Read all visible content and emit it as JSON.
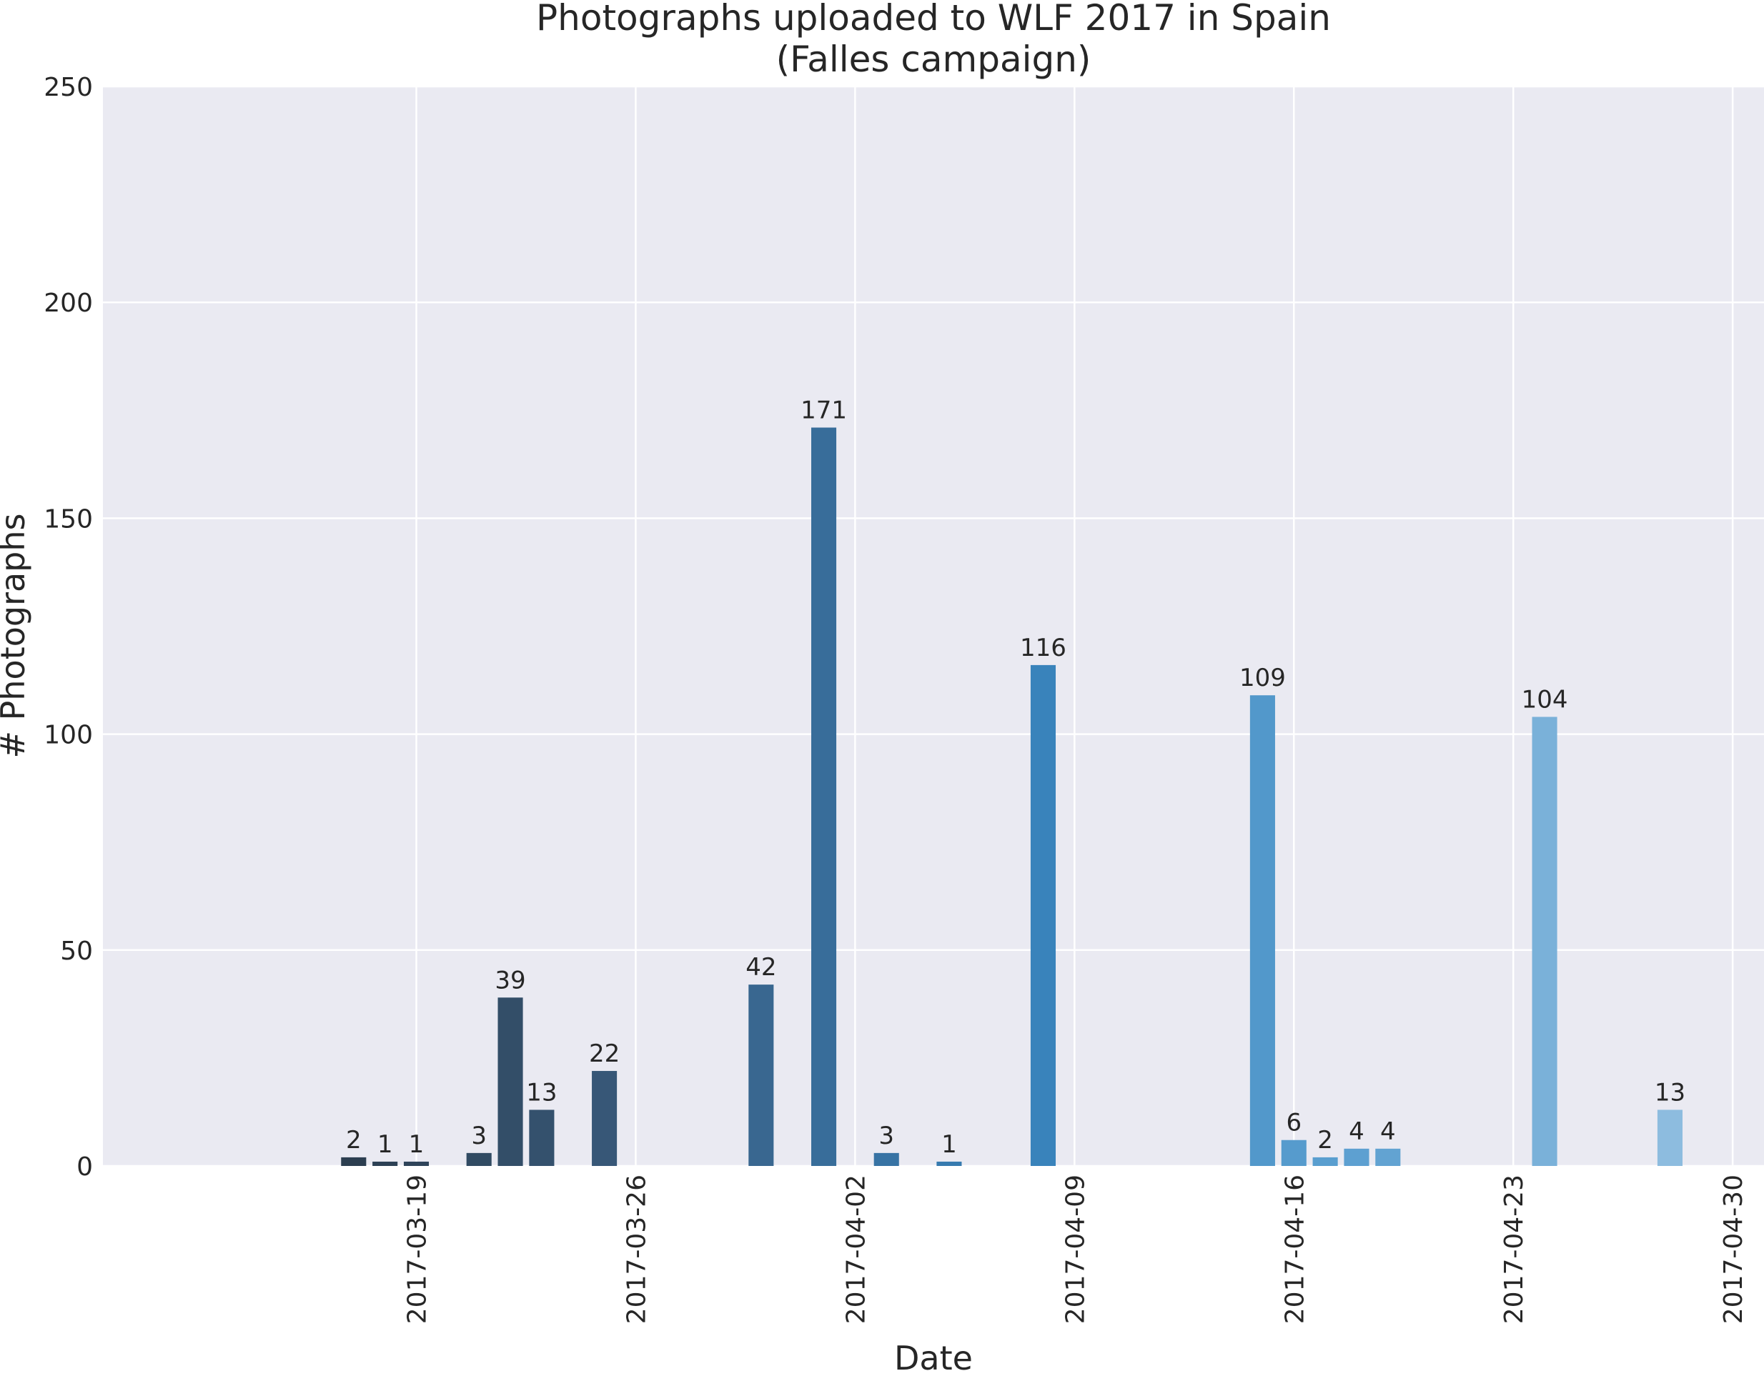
{
  "chart_data": {
    "type": "bar",
    "title": "Photographs uploaded to WLF 2017 in Spain",
    "subtitle": "(Falles campaign)",
    "xlabel": "Date",
    "ylabel": "# Photographs",
    "x_range": [
      "2017-03-09",
      "2017-05-01"
    ],
    "ylim": [
      0,
      250
    ],
    "y_ticks": [
      0,
      50,
      100,
      150,
      200,
      250
    ],
    "x_ticks": [
      "2017-03-19",
      "2017-03-26",
      "2017-04-02",
      "2017-04-09",
      "2017-04-16",
      "2017-04-23",
      "2017-04-30"
    ],
    "grid": true,
    "background": "#eaeaf2",
    "grid_color": "#ffffff",
    "palette": [
      "#2c3e50",
      "#3a5f83",
      "#3580b9",
      "#5b9fd0",
      "#8dbcdf"
    ],
    "bars": [
      {
        "date": "2017-03-17",
        "value": 2
      },
      {
        "date": "2017-03-18",
        "value": 1
      },
      {
        "date": "2017-03-19",
        "value": 1
      },
      {
        "date": "2017-03-21",
        "value": 3
      },
      {
        "date": "2017-03-22",
        "value": 39
      },
      {
        "date": "2017-03-23",
        "value": 13
      },
      {
        "date": "2017-03-25",
        "value": 22
      },
      {
        "date": "2017-03-30",
        "value": 42
      },
      {
        "date": "2017-04-01",
        "value": 171
      },
      {
        "date": "2017-04-03",
        "value": 3
      },
      {
        "date": "2017-04-05",
        "value": 1
      },
      {
        "date": "2017-04-08",
        "value": 116
      },
      {
        "date": "2017-04-15",
        "value": 109
      },
      {
        "date": "2017-04-16",
        "value": 6
      },
      {
        "date": "2017-04-17",
        "value": 2
      },
      {
        "date": "2017-04-18",
        "value": 4
      },
      {
        "date": "2017-04-19",
        "value": 4
      },
      {
        "date": "2017-04-24",
        "value": 104
      },
      {
        "date": "2017-04-28",
        "value": 13
      }
    ]
  }
}
